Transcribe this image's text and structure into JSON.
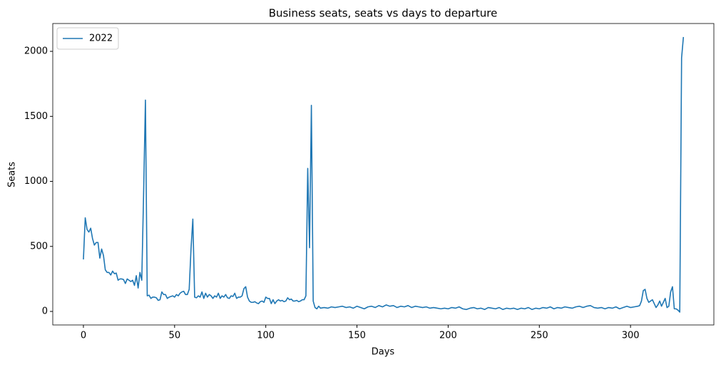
{
  "chart_data": {
    "type": "line",
    "title": "Business seats, seats vs days to departure",
    "xlabel": "Days",
    "ylabel": "Seats",
    "x": [
      0,
      1,
      2,
      3,
      4,
      5,
      6,
      7,
      8,
      9,
      10,
      11,
      12,
      13,
      14,
      15,
      16,
      17,
      18,
      19,
      20,
      21,
      22,
      23,
      24,
      25,
      26,
      27,
      28,
      29,
      30,
      31,
      32,
      33,
      34,
      35,
      36,
      37,
      38,
      39,
      40,
      41,
      42,
      43,
      44,
      45,
      46,
      47,
      48,
      49,
      50,
      51,
      52,
      53,
      54,
      55,
      56,
      57,
      58,
      59,
      60,
      61,
      62,
      63,
      64,
      65,
      66,
      67,
      68,
      69,
      70,
      71,
      72,
      73,
      74,
      75,
      76,
      77,
      78,
      79,
      80,
      81,
      82,
      83,
      84,
      85,
      86,
      87,
      88,
      89,
      90,
      91,
      92,
      93,
      94,
      95,
      96,
      97,
      98,
      99,
      100,
      101,
      102,
      103,
      104,
      105,
      106,
      107,
      108,
      109,
      110,
      111,
      112,
      113,
      114,
      115,
      116,
      117,
      118,
      119,
      120,
      121,
      122,
      123,
      124,
      125,
      126,
      127,
      128,
      129,
      130,
      132,
      134,
      136,
      138,
      140,
      142,
      144,
      146,
      148,
      150,
      152,
      154,
      156,
      158,
      160,
      162,
      164,
      166,
      168,
      170,
      172,
      174,
      176,
      178,
      180,
      182,
      184,
      186,
      188,
      190,
      192,
      194,
      196,
      198,
      200,
      202,
      204,
      206,
      208,
      210,
      212,
      214,
      216,
      218,
      220,
      222,
      224,
      226,
      228,
      230,
      232,
      234,
      236,
      238,
      240,
      242,
      244,
      246,
      248,
      250,
      252,
      254,
      256,
      258,
      260,
      262,
      264,
      266,
      268,
      270,
      272,
      274,
      276,
      278,
      280,
      282,
      284,
      286,
      288,
      290,
      292,
      294,
      296,
      298,
      300,
      302,
      304,
      305,
      306,
      307,
      308,
      309,
      310,
      311,
      312,
      313,
      314,
      315,
      316,
      317,
      318,
      319,
      320,
      321,
      322,
      323,
      324,
      325,
      326,
      327,
      328,
      329
    ],
    "series": [
      {
        "name": "2022",
        "color": "#1f77b4",
        "values": [
          400,
          720,
          630,
          610,
          640,
          560,
          510,
          530,
          530,
          410,
          480,
          430,
          320,
          300,
          300,
          280,
          310,
          290,
          295,
          240,
          250,
          250,
          245,
          215,
          250,
          240,
          230,
          240,
          200,
          275,
          180,
          300,
          240,
          900,
          1625,
          120,
          125,
          100,
          110,
          110,
          105,
          85,
          90,
          150,
          130,
          130,
          100,
          110,
          115,
          120,
          110,
          130,
          120,
          140,
          150,
          155,
          130,
          130,
          170,
          480,
          710,
          110,
          105,
          120,
          110,
          150,
          100,
          140,
          110,
          130,
          120,
          100,
          120,
          110,
          140,
          100,
          120,
          110,
          130,
          105,
          100,
          120,
          115,
          140,
          100,
          110,
          110,
          120,
          175,
          190,
          110,
          80,
          70,
          70,
          75,
          65,
          60,
          75,
          80,
          70,
          110,
          100,
          100,
          60,
          90,
          60,
          80,
          90,
          80,
          85,
          75,
          80,
          105,
          90,
          95,
          80,
          80,
          85,
          75,
          80,
          90,
          90,
          120,
          1100,
          490,
          1585,
          80,
          30,
          20,
          40,
          25,
          30,
          25,
          35,
          30,
          35,
          40,
          30,
          35,
          25,
          40,
          30,
          20,
          35,
          40,
          30,
          45,
          35,
          50,
          40,
          45,
          30,
          40,
          35,
          45,
          30,
          40,
          35,
          30,
          35,
          25,
          30,
          25,
          20,
          25,
          20,
          30,
          25,
          35,
          20,
          15,
          25,
          30,
          20,
          25,
          15,
          30,
          25,
          20,
          30,
          15,
          25,
          20,
          25,
          15,
          25,
          20,
          30,
          15,
          25,
          20,
          30,
          25,
          35,
          20,
          30,
          25,
          35,
          30,
          25,
          35,
          40,
          30,
          40,
          45,
          30,
          25,
          30,
          20,
          30,
          25,
          35,
          20,
          30,
          40,
          30,
          35,
          40,
          45,
          80,
          160,
          170,
          100,
          70,
          80,
          90,
          60,
          30,
          50,
          80,
          40,
          70,
          100,
          30,
          40,
          150,
          190,
          20,
          20,
          10,
          -5,
          1950,
          2110
        ]
      }
    ],
    "xlim": [
      -16.8,
      345.7
    ],
    "ylim": [
      -104,
      2214
    ],
    "xticks": [
      0,
      50,
      100,
      150,
      200,
      250,
      300
    ],
    "yticks": [
      0,
      500,
      1000,
      1500,
      2000
    ],
    "legend": "upper left"
  }
}
